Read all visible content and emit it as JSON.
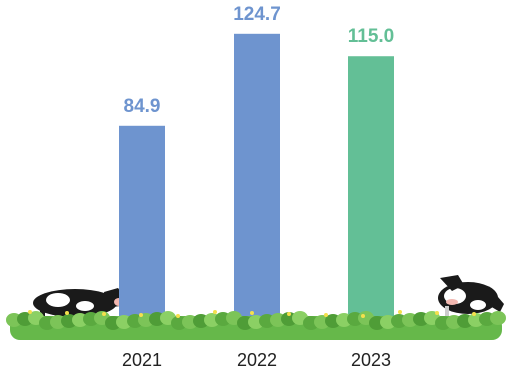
{
  "chart_data": {
    "type": "bar",
    "categories": [
      "2021",
      "2022",
      "2023"
    ],
    "values": [
      84.9,
      124.7,
      115.0
    ],
    "value_labels": [
      "84.9",
      "124.7",
      "115.0"
    ],
    "ylim": [
      0,
      135
    ],
    "grid": false,
    "colors": [
      "#6e94cf",
      "#6e94cf",
      "#63bf96"
    ]
  },
  "decorations": {
    "grass_color": "#66b84a",
    "left_illustration": "cow-grazing-icon",
    "right_illustration": "cow-grazing-icon"
  }
}
